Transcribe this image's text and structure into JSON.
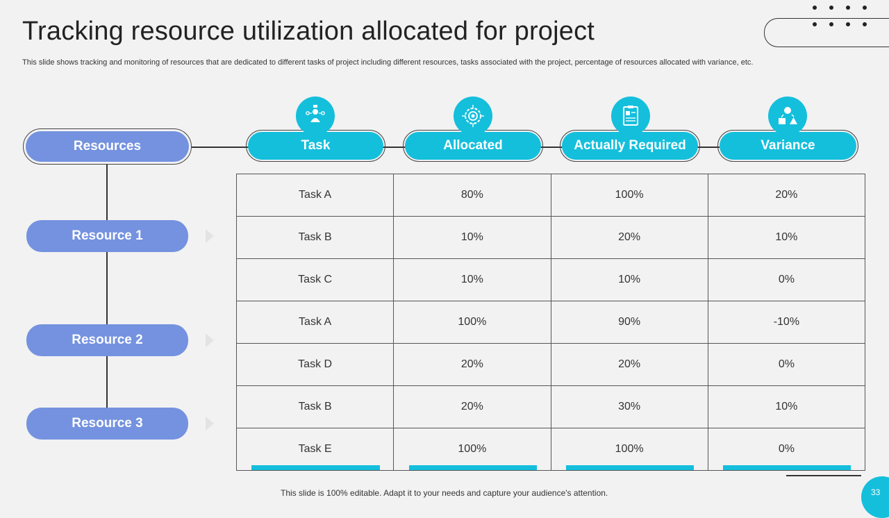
{
  "header": {
    "title": "Tracking resource utilization allocated for project",
    "subtitle": "This slide shows tracking and monitoring of resources that are dedicated to different tasks of project including different resources, tasks associated with the project, percentage of resources allocated with variance, etc."
  },
  "columns": {
    "resources": "Resources",
    "task": "Task",
    "allocated": "Allocated",
    "actually_required": "Actually Required",
    "variance": "Variance"
  },
  "icons": {
    "task": "team-leader-icon",
    "allocated": "target-gear-icon",
    "actually_required": "clipboard-report-icon",
    "variance": "recycle-shapes-icon"
  },
  "resources": [
    "Resource 1",
    "Resource 2",
    "Resource 3"
  ],
  "table": {
    "rows": [
      [
        "Task A",
        "80%",
        "100%",
        "20%"
      ],
      [
        "Task B",
        "10%",
        "20%",
        "10%"
      ],
      [
        "Task C",
        "10%",
        "10%",
        "0%"
      ],
      [
        "Task A",
        "100%",
        "90%",
        "-10%"
      ],
      [
        "Task D",
        "20%",
        "20%",
        "0%"
      ],
      [
        "Task B",
        "20%",
        "30%",
        "10%"
      ],
      [
        "Task E",
        "100%",
        "100%",
        "0%"
      ]
    ]
  },
  "footer": {
    "note": "This slide is 100% editable. Adapt it to your needs and capture your audience's attention.",
    "page_number": "33"
  },
  "colors": {
    "accent_cyan": "#14bfdc",
    "resource_purple": "#7492df",
    "background": "#f2f2f2"
  }
}
